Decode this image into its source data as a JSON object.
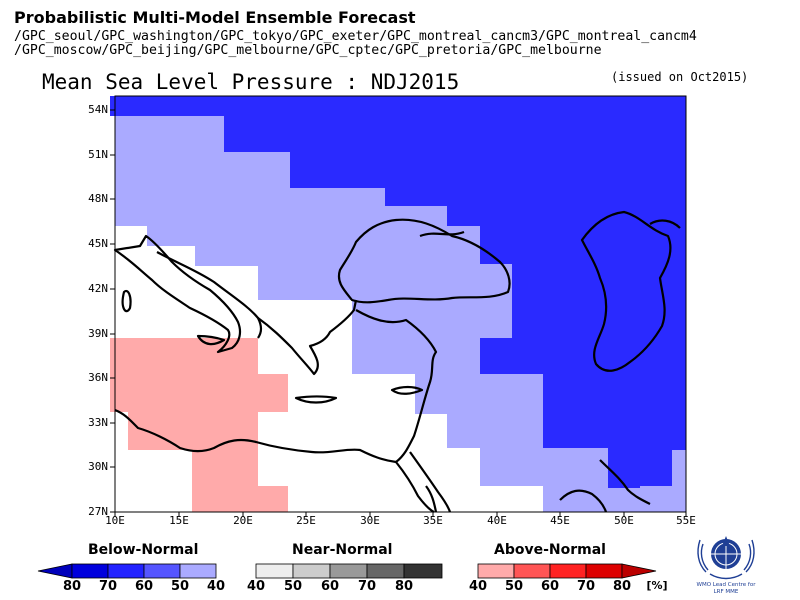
{
  "header": {
    "title": "Probabilistic Multi-Model Ensemble Forecast",
    "models_line1": "/GPC_seoul/GPC_washington/GPC_tokyo/GPC_exeter/GPC_montreal_cancm3/GPC_montreal_cancm4",
    "models_line2": "/GPC_moscow/GPC_beijing/GPC_melbourne/GPC_cptec/GPC_pretoria/GPC_melbourne",
    "map_title": "Mean Sea Level Pressure : NDJ2015",
    "issued": "(issued on Oct2015)"
  },
  "map": {
    "lat_labels": [
      "54N",
      "51N",
      "48N",
      "45N",
      "42N",
      "39N",
      "36N",
      "33N",
      "30N",
      "27N"
    ],
    "lon_labels": [
      "10E",
      "15E",
      "20E",
      "25E",
      "30E",
      "35E",
      "40E",
      "45E",
      "50E",
      "55E"
    ],
    "colors": {
      "below_40": "#aaaaff",
      "below_50": "#2a2aff",
      "above_40": "#ffaaaa",
      "no_signal": "#ffffff"
    }
  },
  "legend": {
    "below_label": "Below-Normal",
    "near_label": "Near-Normal",
    "above_label": "Above-Normal",
    "below_values": [
      "80",
      "70",
      "60",
      "50",
      "40"
    ],
    "near_values": [
      "40",
      "50",
      "60",
      "70",
      "80"
    ],
    "above_values": [
      "40",
      "50",
      "60",
      "70",
      "80"
    ],
    "unit": "[%]",
    "below_colors": [
      "#0000bb",
      "#0000dd",
      "#2222ff",
      "#5555ff",
      "#aaaaff"
    ],
    "near_colors": [
      "#eeeeee",
      "#cccccc",
      "#999999",
      "#666666",
      "#333333"
    ],
    "above_colors": [
      "#ffaaaa",
      "#ff5555",
      "#ff2222",
      "#dd0000",
      "#bb0000"
    ]
  },
  "logo": {
    "icon": "wmo-emblem-icon",
    "text1": "WMO Lead Centre for",
    "text2": "LRF MME"
  }
}
